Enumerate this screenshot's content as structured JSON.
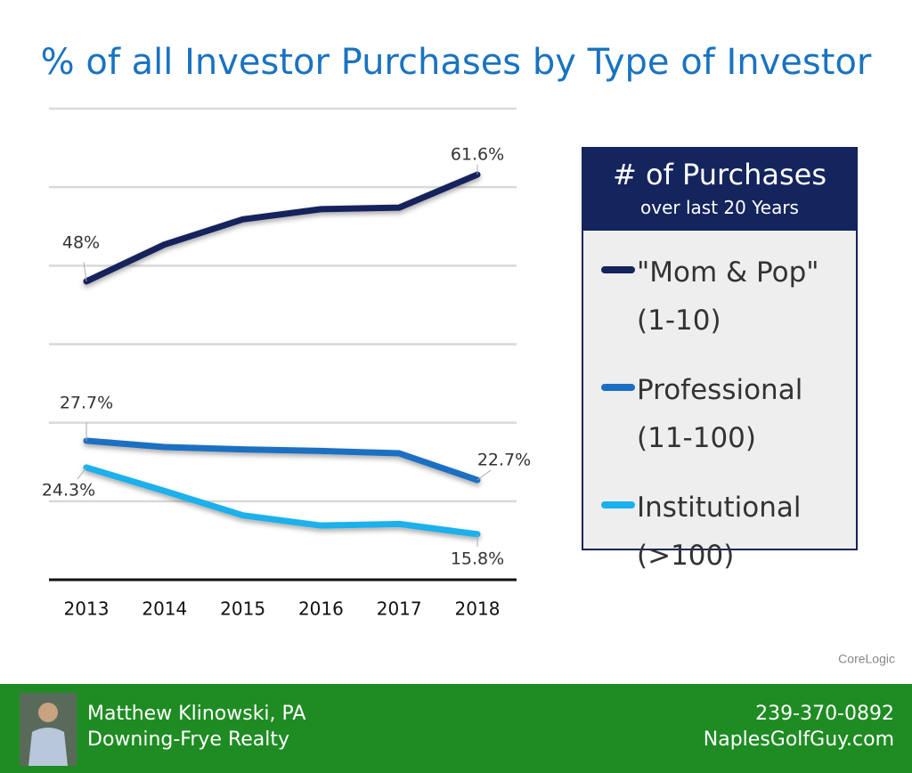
{
  "chart_data": {
    "type": "line",
    "title": "% of all Investor Purchases by Type of Investor",
    "categories": [
      "2013",
      "2014",
      "2015",
      "2016",
      "2017",
      "2018"
    ],
    "series": [
      {
        "name": "\"Mom & Pop\" (1-10)",
        "color": "#14245c",
        "values": [
          48,
          52.7,
          55.9,
          57.2,
          57.4,
          61.6
        ],
        "value_labels": [
          "48%",
          null,
          null,
          null,
          null,
          "61.6%"
        ]
      },
      {
        "name": "Professional (11-100)",
        "color": "#1a6fc2",
        "values": [
          27.7,
          26.9,
          26.6,
          26.4,
          26.1,
          22.7
        ],
        "value_labels": [
          "27.7%",
          null,
          null,
          null,
          null,
          "22.7%"
        ]
      },
      {
        "name": "Institutional (>100)",
        "color": "#1ab0ec",
        "values": [
          24.3,
          21.3,
          18.2,
          16.9,
          17.1,
          15.8
        ],
        "value_labels": [
          "24.3%",
          null,
          null,
          null,
          null,
          "15.8%"
        ]
      }
    ],
    "ylim": [
      10,
      70
    ],
    "yticks": [
      10,
      20,
      30,
      40,
      50,
      60,
      70
    ],
    "grid": true,
    "legend_title": "# of Purchases",
    "legend_subtitle": "over last 20 Years",
    "source": "CoreLogic"
  },
  "footer": {
    "name": "Matthew Klinowski, PA",
    "company": "Downing-Frye Realty",
    "phone": "239-370-0892",
    "website": "NaplesGolfGuy.com"
  }
}
